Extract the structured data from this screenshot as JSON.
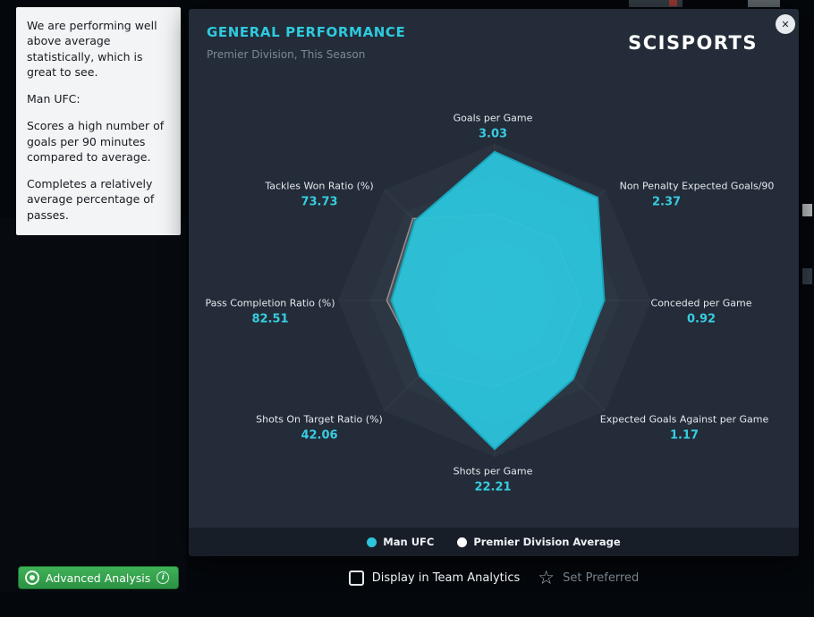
{
  "analysis_panel": {
    "paragraphs": [
      "We are performing well above average statistically, which is great to see.",
      "Man UFC:",
      "Scores a high number of goals per 90 minutes compared to average.",
      "Completes a relatively average percentage of passes."
    ]
  },
  "overlay": {
    "title": "GENERAL PERFORMANCE",
    "subtitle": "Premier Division, This Season",
    "brand": "SCISPORTS",
    "close_icon": "✕"
  },
  "colors": {
    "accent_cyan": "#2fc9de",
    "value_cyan": "#38cce1",
    "team_series": "#2bc6dd",
    "average_series": "#ffffff",
    "button_green": "#2f9a46",
    "panel_bg": "#232c38"
  },
  "chart_data": {
    "type": "radar",
    "title": "GENERAL PERFORMANCE",
    "subtitle": "Premier Division, This Season",
    "legend_position": "bottom",
    "axes": [
      {
        "label": "Goals per Game",
        "value": "3.03"
      },
      {
        "label": "Non Penalty Expected Goals/90",
        "value": "2.37"
      },
      {
        "label": "Conceded per Game",
        "value": "0.92"
      },
      {
        "label": "Expected Goals Against per Game",
        "value": "1.17"
      },
      {
        "label": "Shots per Game",
        "value": "22.21"
      },
      {
        "label": "Shots On Target Ratio (%)",
        "value": "42.06"
      },
      {
        "label": "Pass Completion Ratio (%)",
        "value": "82.51"
      },
      {
        "label": "Tackles Won Ratio (%)",
        "value": "73.73"
      }
    ],
    "series": [
      {
        "name": "Premier Division Average",
        "fill": "rgba(232,226,220,0.16)",
        "stroke": "rgba(226,199,190,0.55)",
        "stroke_width": 1.5,
        "values_norm": [
          0.55,
          0.55,
          0.55,
          0.55,
          0.55,
          0.64,
          0.69,
          0.74
        ]
      },
      {
        "name": "Man UFC",
        "fill": "rgba(43,196,219,0.95)",
        "stroke": "#18a4ba",
        "stroke_width": 2,
        "values_norm": [
          0.95,
          0.93,
          0.7,
          0.71,
          0.95,
          0.68,
          0.66,
          0.72
        ]
      }
    ],
    "legend": [
      {
        "label": "Man UFC",
        "color": "#2bc6dd"
      },
      {
        "label": "Premier Division Average",
        "color": "#ffffff"
      }
    ],
    "rings": [
      {
        "r": 1.0,
        "color": "#29323e"
      },
      {
        "r": 0.8,
        "color": "#2d3743"
      },
      {
        "r": 0.6,
        "color": "#323d49"
      },
      {
        "r": 0.4,
        "color": "#384350"
      },
      {
        "r": 0.2,
        "color": "#3e4a58"
      }
    ]
  },
  "footer": {
    "advanced_analysis": {
      "label": "Advanced Analysis",
      "info_icon": "i"
    },
    "team_analytics_checkbox": {
      "label": "Display in Team Analytics",
      "checked": false
    },
    "set_preferred": {
      "label": "Set Preferred",
      "star_icon": "☆"
    }
  }
}
